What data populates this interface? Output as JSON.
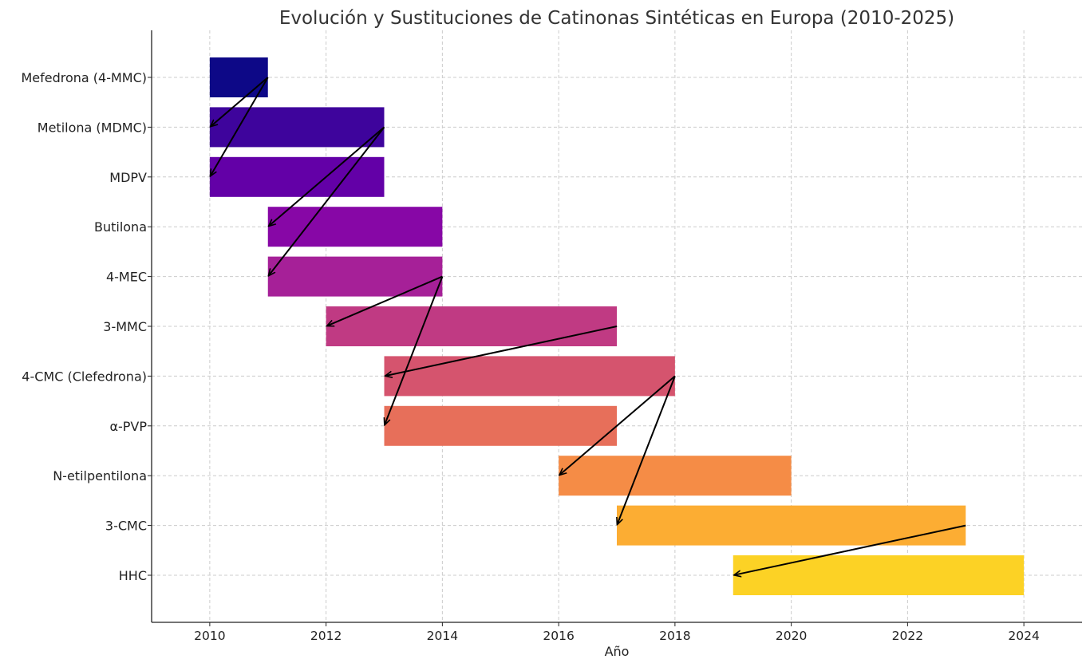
{
  "chart_data": {
    "type": "bar",
    "orientation": "horizontal-range",
    "title": "Evolución y Sustituciones de Catinonas Sintéticas en Europa (2010-2025)",
    "xlabel": "Año",
    "ylabel": "",
    "xlim": [
      2009,
      2025
    ],
    "xticks": [
      2010,
      2012,
      2014,
      2016,
      2018,
      2020,
      2022,
      2024
    ],
    "grid": true,
    "bars": [
      {
        "name": "Mefedrona (4-MMC)",
        "start": 2010,
        "end": 2011,
        "color": "#0d0887"
      },
      {
        "name": "Metilona (MDMC)",
        "start": 2010,
        "end": 2013,
        "color": "#3e049c"
      },
      {
        "name": "MDPV",
        "start": 2010,
        "end": 2013,
        "color": "#6300a7"
      },
      {
        "name": "Butilona",
        "start": 2011,
        "end": 2014,
        "color": "#8707a6"
      },
      {
        "name": "4-MEC",
        "start": 2011,
        "end": 2014,
        "color": "#a62098"
      },
      {
        "name": "3-MMC",
        "start": 2012,
        "end": 2017,
        "color": "#c03a83"
      },
      {
        "name": "4-CMC (Clefedrona)",
        "start": 2013,
        "end": 2018,
        "color": "#d5546e"
      },
      {
        "name": "α-PVP",
        "start": 2013,
        "end": 2017,
        "color": "#e76f5a"
      },
      {
        "name": "N-etilpentilona",
        "start": 2016,
        "end": 2020,
        "color": "#f58c46"
      },
      {
        "name": "3-CMC",
        "start": 2017,
        "end": 2023,
        "color": "#fcad33"
      },
      {
        "name": "HHC",
        "start": 2019,
        "end": 2024,
        "color": "#fcd225"
      }
    ],
    "substitutions": [
      {
        "from": "Mefedrona (4-MMC)",
        "to": "Metilona (MDMC)"
      },
      {
        "from": "Mefedrona (4-MMC)",
        "to": "MDPV"
      },
      {
        "from": "Metilona (MDMC)",
        "to": "Butilona"
      },
      {
        "from": "Metilona (MDMC)",
        "to": "4-MEC"
      },
      {
        "from": "4-MEC",
        "to": "3-MMC"
      },
      {
        "from": "4-MEC",
        "to": "α-PVP"
      },
      {
        "from": "3-MMC",
        "to": "4-CMC (Clefedrona)"
      },
      {
        "from": "4-CMC (Clefedrona)",
        "to": "N-etilpentilona"
      },
      {
        "from": "4-CMC (Clefedrona)",
        "to": "3-CMC"
      },
      {
        "from": "3-CMC",
        "to": "HHC"
      }
    ]
  }
}
